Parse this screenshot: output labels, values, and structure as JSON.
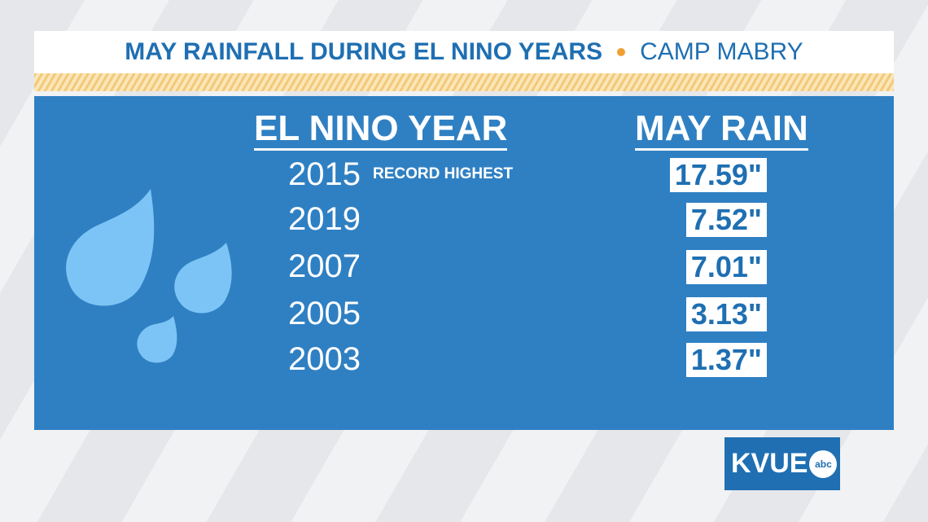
{
  "header": {
    "title": "MAY RAINFALL DURING EL NINO YEARS",
    "subtitle": "CAMP MABRY"
  },
  "table": {
    "columns": [
      "EL NINO YEAR",
      "MAY RAIN"
    ],
    "rows": [
      {
        "year": "2015",
        "note": "RECORD HIGHEST",
        "rain": "17.59\""
      },
      {
        "year": "2019",
        "rain": "7.52\""
      },
      {
        "year": "2007",
        "rain": "7.01\""
      },
      {
        "year": "2005",
        "rain": "3.13\""
      },
      {
        "year": "2003",
        "rain": "1.37\""
      }
    ]
  },
  "logo": {
    "name": "KVUE",
    "network": "abc"
  }
}
